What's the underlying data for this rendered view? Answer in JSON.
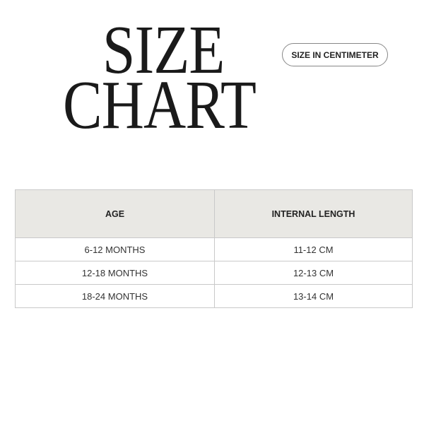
{
  "title": {
    "line1": "SIZE",
    "line2": "CHART"
  },
  "unit_badge": "SIZE IN CENTIMETER",
  "table": {
    "headers": [
      "AGE",
      "INTERNAL LENGTH"
    ],
    "rows": [
      [
        "6-12 MONTHS",
        "11-12 CM"
      ],
      [
        "12-18 MONTHS",
        "12-13 CM"
      ],
      [
        "18-24 MONTHS",
        "13-14 CM"
      ]
    ]
  },
  "colors": {
    "header_bg": "#e9e8e4",
    "border": "#c9c9c9",
    "text": "#222222"
  }
}
